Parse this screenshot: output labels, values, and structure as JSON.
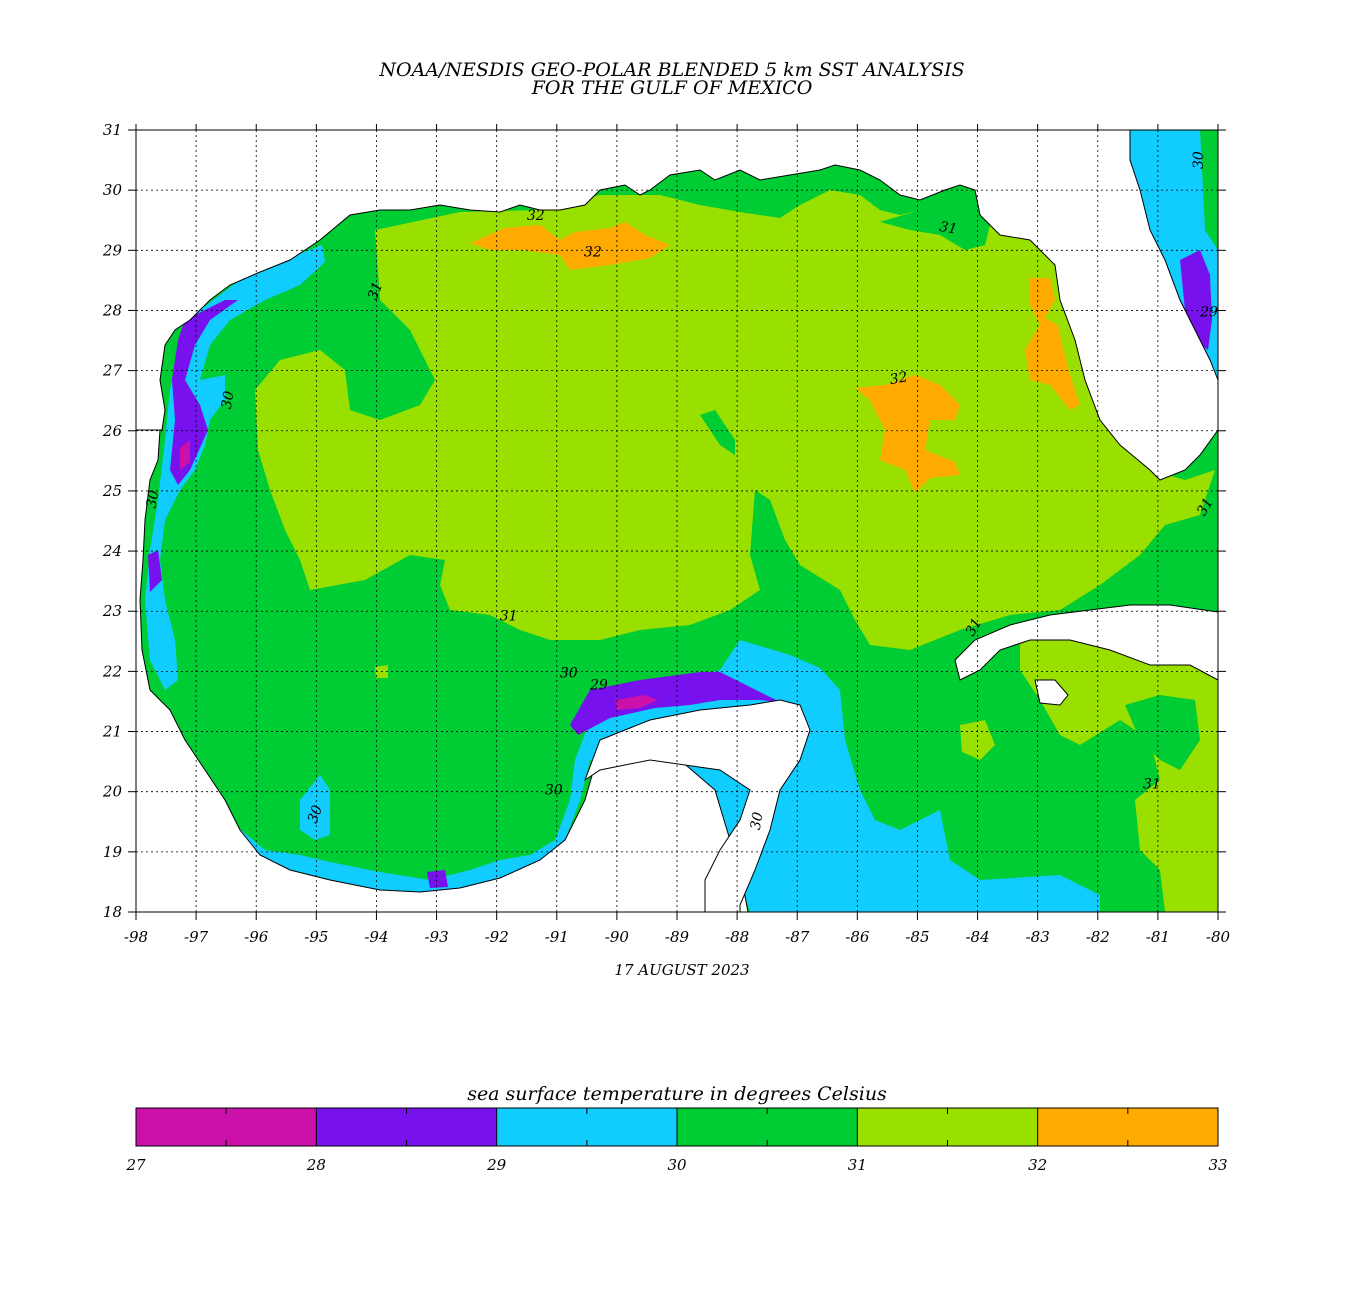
{
  "title": {
    "line1": "NOAA/NESDIS GEO-POLAR BLENDED 5 km SST ANALYSIS",
    "line2": "FOR THE GULF OF MEXICO"
  },
  "date": "17 AUGUST 2023",
  "map": {
    "lon_min": -98,
    "lon_max": -80,
    "lat_min": 18,
    "lat_max": 31,
    "lon_ticks": [
      "-98",
      "-97",
      "-96",
      "-95",
      "-94",
      "-93",
      "-92",
      "-91",
      "-90",
      "-89",
      "-88",
      "-87",
      "-86",
      "-85",
      "-84",
      "-83",
      "-82",
      "-81",
      "-80"
    ],
    "lat_ticks": [
      "18",
      "19",
      "20",
      "21",
      "22",
      "23",
      "24",
      "25",
      "26",
      "27",
      "28",
      "29",
      "30",
      "31"
    ],
    "contour_labels": [
      {
        "text": "30",
        "lon": -80.25,
        "lat": 30.5,
        "rot": -90
      },
      {
        "text": "29",
        "lon": -80.15,
        "lat": 27.9,
        "rot": 0
      },
      {
        "text": "31",
        "lon": -80.15,
        "lat": 24.7,
        "rot": -60
      },
      {
        "text": "31",
        "lon": -84.5,
        "lat": 29.3,
        "rot": 10
      },
      {
        "text": "32",
        "lon": -91.35,
        "lat": 29.5,
        "rot": 0
      },
      {
        "text": "32",
        "lon": -90.4,
        "lat": 28.9,
        "rot": 0
      },
      {
        "text": "31",
        "lon": -93.95,
        "lat": 28.3,
        "rot": -70
      },
      {
        "text": "30",
        "lon": -96.4,
        "lat": 26.5,
        "rot": -80
      },
      {
        "text": "32",
        "lon": -85.3,
        "lat": 26.8,
        "rot": -10
      },
      {
        "text": "30",
        "lon": -97.65,
        "lat": 24.85,
        "rot": -80
      },
      {
        "text": "31",
        "lon": -91.8,
        "lat": 22.85,
        "rot": 0
      },
      {
        "text": "31",
        "lon": -84.0,
        "lat": 22.7,
        "rot": -60
      },
      {
        "text": "30",
        "lon": -90.8,
        "lat": 21.9,
        "rot": 0
      },
      {
        "text": "29",
        "lon": -90.3,
        "lat": 21.7,
        "rot": 0
      },
      {
        "text": "30",
        "lon": -94.95,
        "lat": 19.6,
        "rot": -70
      },
      {
        "text": "30",
        "lon": -91.05,
        "lat": 19.95,
        "rot": 0
      },
      {
        "text": "30",
        "lon": -87.6,
        "lat": 19.5,
        "rot": -80
      },
      {
        "text": "31",
        "lon": -81.1,
        "lat": 20.05,
        "rot": 0
      }
    ]
  },
  "colorbar": {
    "label": "sea surface temperature in degrees Celsius",
    "bins": [
      {
        "min": 27,
        "max": 28,
        "color": "#cc11aa"
      },
      {
        "min": 28,
        "max": 29,
        "color": "#7711ee"
      },
      {
        "min": 29,
        "max": 30,
        "color": "#11ccff"
      },
      {
        "min": 30,
        "max": 31,
        "color": "#00cc33"
      },
      {
        "min": 31,
        "max": 32,
        "color": "#99e000"
      },
      {
        "min": 32,
        "max": 33,
        "color": "#ffaa00"
      }
    ],
    "tick_labels": [
      "27",
      "28",
      "29",
      "30",
      "31",
      "32",
      "33"
    ]
  },
  "colors": {
    "sst_27": "#cc11aa",
    "sst_28": "#7711ee",
    "sst_29": "#11ccff",
    "sst_30": "#00cc33",
    "sst_31": "#99e000",
    "sst_32": "#ffaa00",
    "land": "#ffffff"
  }
}
